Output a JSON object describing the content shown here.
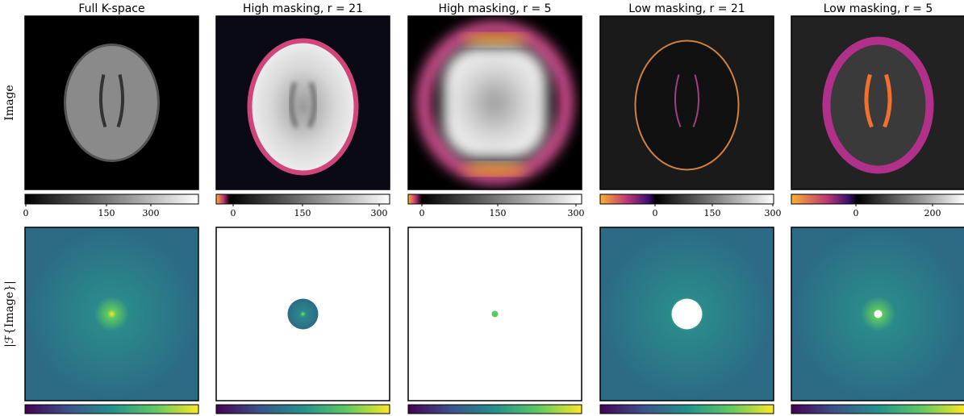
{
  "row_labels": [
    "Image",
    "|ℱ{Image}|"
  ],
  "columns": [
    {
      "title": "Full K-space",
      "colorbar_ticks": [
        "0",
        "150",
        "300"
      ]
    },
    {
      "title": "High masking, r = 21",
      "colorbar_ticks": [
        "0",
        "150",
        "300"
      ]
    },
    {
      "title": "High masking, r = 5",
      "colorbar_ticks": [
        "0",
        "150",
        "300"
      ]
    },
    {
      "title": "Low masking, r = 21",
      "colorbar_ticks": [
        "0",
        "150",
        "300"
      ]
    },
    {
      "title": "Low masking, r = 5",
      "colorbar_ticks": [
        "0",
        "200"
      ]
    }
  ]
}
